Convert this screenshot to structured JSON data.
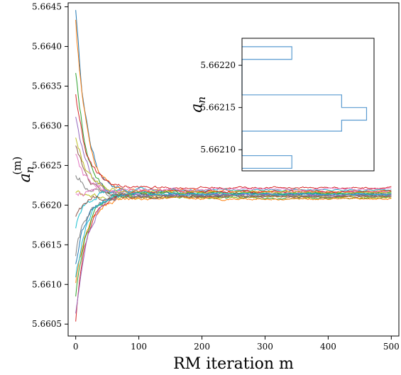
{
  "chart_data": [
    {
      "type": "line",
      "xlabel": "RM iteration m",
      "ylabel_base": "a",
      "ylabel_sub": "n",
      "ylabel_sup": "(m)",
      "xlim": [
        -12,
        512
      ],
      "ylim": [
        5.66035,
        5.66455
      ],
      "xticks": [
        0,
        100,
        200,
        300,
        400,
        500
      ],
      "xtick_labels": [
        "0",
        "100",
        "200",
        "300",
        "400",
        "500"
      ],
      "yticks": [
        5.6605,
        5.661,
        5.6615,
        5.662,
        5.6625,
        5.663,
        5.6635,
        5.664,
        5.6645
      ],
      "ytick_labels": [
        "5.6605",
        "5.6610",
        "5.6615",
        "5.6620",
        "5.6625",
        "5.6630",
        "5.6635",
        "5.6640",
        "5.6645"
      ],
      "grid": false,
      "series_count": 20,
      "x_range": [
        0,
        500
      ],
      "series_start_values": [
        5.6645,
        5.6643,
        5.6637,
        5.6634,
        5.6631,
        5.6628,
        5.6626,
        5.6624,
        5.6622,
        5.6617,
        5.6613,
        5.661,
        5.6608,
        5.6605,
        5.6606,
        5.6619,
        5.6621,
        5.6614,
        5.6629,
        5.6611
      ],
      "series_end_values": [
        5.66214,
        5.66218,
        5.66209,
        5.66222,
        5.66213,
        5.66211,
        5.66216,
        5.66212,
        5.6621,
        5.66219,
        5.66214,
        5.66208,
        5.66215,
        5.66217,
        5.66213,
        5.66211,
        5.6622,
        5.66212,
        5.66216,
        5.66214
      ],
      "colors": [
        "#1f77b4",
        "#ff7f0e",
        "#2ca02c",
        "#d62728",
        "#9467bd",
        "#8c564b",
        "#e377c2",
        "#7f7f7f",
        "#bcbd22",
        "#17becf"
      ]
    },
    {
      "type": "histogram",
      "orientation": "horizontal",
      "ylabel_base": "a",
      "ylabel_sub": "n",
      "ylim": [
        5.662075,
        5.662232
      ],
      "yticks": [
        5.6621,
        5.66215,
        5.6622
      ],
      "ytick_labels": [
        "5.66210",
        "5.66215",
        "5.66220"
      ],
      "bins": [
        {
          "low": 5.662078,
          "high": 5.662093,
          "count": 2
        },
        {
          "low": 5.662093,
          "high": 5.662122,
          "count": 0
        },
        {
          "low": 5.662122,
          "high": 5.662135,
          "count": 4
        },
        {
          "low": 5.662135,
          "high": 5.66215,
          "count": 5
        },
        {
          "low": 5.66215,
          "high": 5.662165,
          "count": 4
        },
        {
          "low": 5.662165,
          "high": 5.662178,
          "count": 0
        },
        {
          "low": 5.662178,
          "high": 5.662207,
          "count": 0
        },
        {
          "low": 5.662207,
          "high": 5.662222,
          "count": 2
        }
      ],
      "count_max": 5.3,
      "color": "#5a9bd0"
    }
  ]
}
